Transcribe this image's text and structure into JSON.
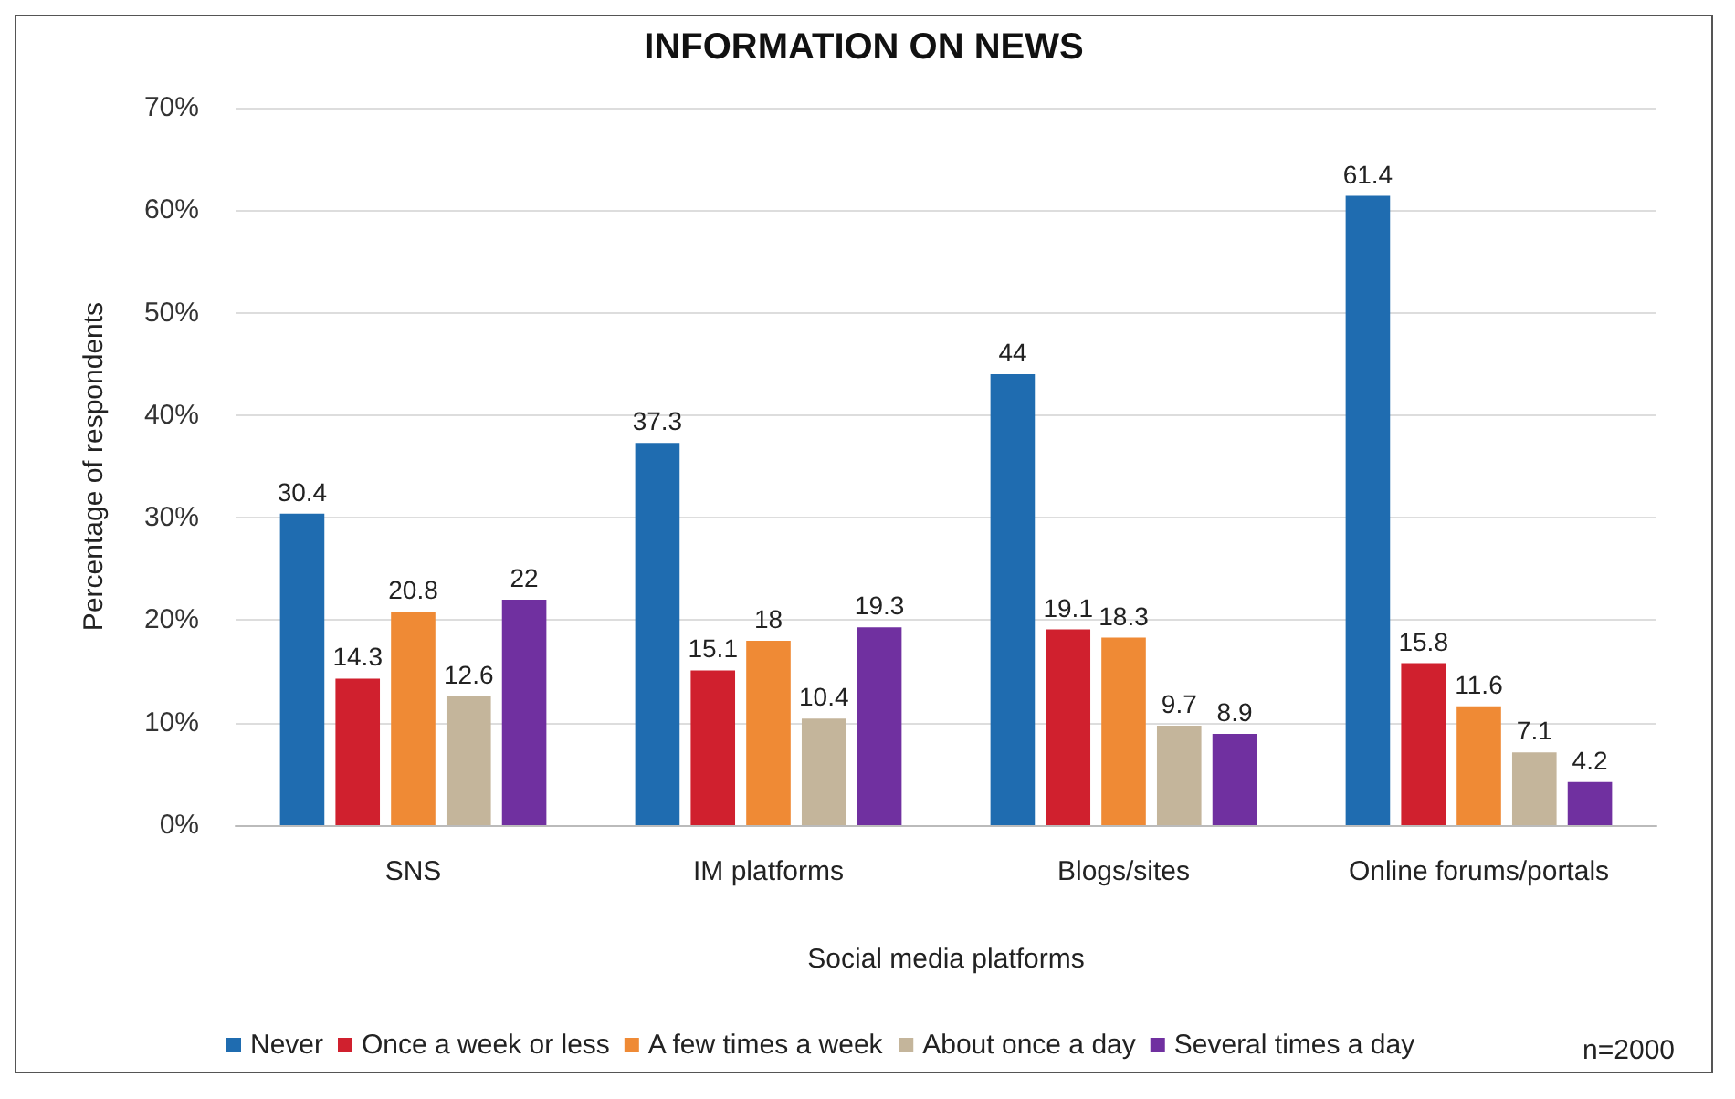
{
  "chart_data": {
    "type": "bar",
    "title": "INFORMATION ON NEWS",
    "xlabel": "Social media platforms",
    "ylabel": "Percentage of respondents",
    "categories": [
      "SNS",
      "IM platforms",
      "Blogs/sites",
      "Online forums/portals"
    ],
    "series": [
      {
        "name": "Never",
        "color": "#1f6cb0",
        "values": [
          30.4,
          37.3,
          44,
          61.4
        ]
      },
      {
        "name": "Once a week or less",
        "color": "#d0202e",
        "values": [
          14.3,
          15.1,
          19.1,
          15.8
        ]
      },
      {
        "name": "A few times a week",
        "color": "#ef8a35",
        "values": [
          20.8,
          18,
          18.3,
          11.6
        ]
      },
      {
        "name": "About once a day",
        "color": "#c4b59b",
        "values": [
          12.6,
          10.4,
          9.7,
          7.1
        ]
      },
      {
        "name": "Several times a day",
        "color": "#7030a0",
        "values": [
          22,
          19.3,
          8.9,
          4.2
        ]
      }
    ],
    "ylim": [
      0,
      70
    ],
    "yticks": [
      {
        "value": 0,
        "label": "0%"
      },
      {
        "value": 10,
        "label": "10%"
      },
      {
        "value": 20,
        "label": "20%"
      },
      {
        "value": 30,
        "label": "30%"
      },
      {
        "value": 40,
        "label": "40%"
      },
      {
        "value": 50,
        "label": "50%"
      },
      {
        "value": 60,
        "label": "60%"
      },
      {
        "value": 70,
        "label": "70%"
      }
    ],
    "grid": "y",
    "legend": "bottom",
    "data_labels": true,
    "annotations": [
      "n=2000"
    ]
  }
}
